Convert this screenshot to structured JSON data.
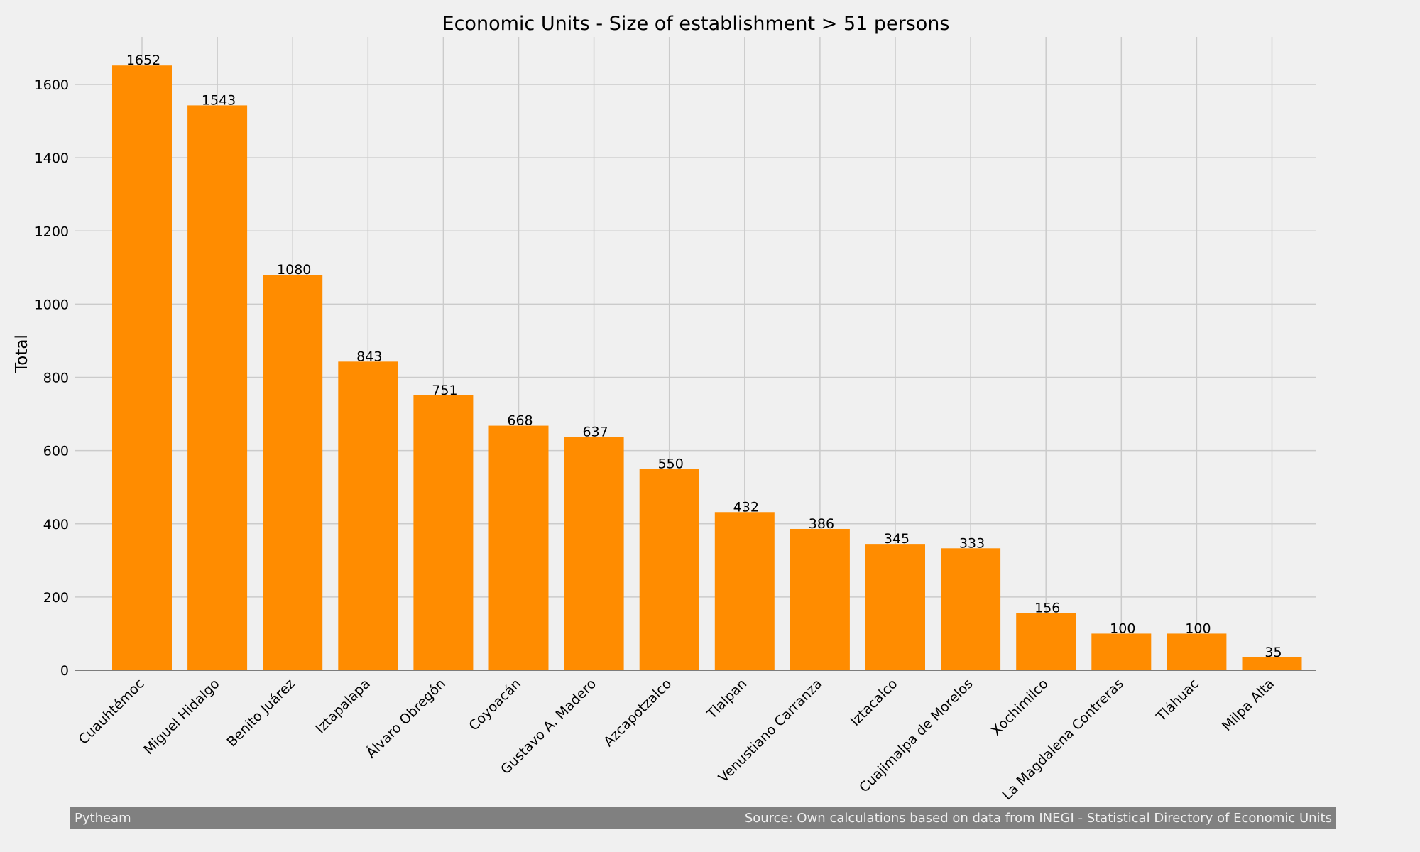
{
  "colors": {
    "background": "#f0f0f0",
    "bar": "#ff8c00",
    "grid": "#cbcbcb",
    "text": "#000000",
    "footer_bg": "#808080",
    "footer_text": "#f0f0f0"
  },
  "footer": {
    "left": "Pytheam",
    "right": "Source: Own calculations based on data from INEGI - Statistical Directory of Economic Units"
  },
  "chart_data": {
    "type": "bar",
    "title": "Economic Units - Size of establishment > 51 persons",
    "xlabel": "",
    "ylabel": "Total",
    "ylim": [
      0,
      1730
    ],
    "yticks": [
      0,
      200,
      400,
      600,
      800,
      1000,
      1200,
      1400,
      1600
    ],
    "grid": true,
    "categories": [
      "Cuauhtémoc",
      "Miguel Hidalgo",
      "Benito Juárez",
      "Iztapalapa",
      "Álvaro Obregón",
      "Coyoacán",
      "Gustavo A. Madero",
      "Azcapotzalco",
      "Tlalpan",
      "Venustiano Carranza",
      "Iztacalco",
      "Cuajimalpa de Morelos",
      "Xochimilco",
      "La Magdalena Contreras",
      "Tláhuac",
      "Milpa Alta"
    ],
    "values": [
      1652,
      1543,
      1080,
      843,
      751,
      668,
      637,
      550,
      432,
      386,
      345,
      333,
      156,
      100,
      100,
      35
    ]
  }
}
